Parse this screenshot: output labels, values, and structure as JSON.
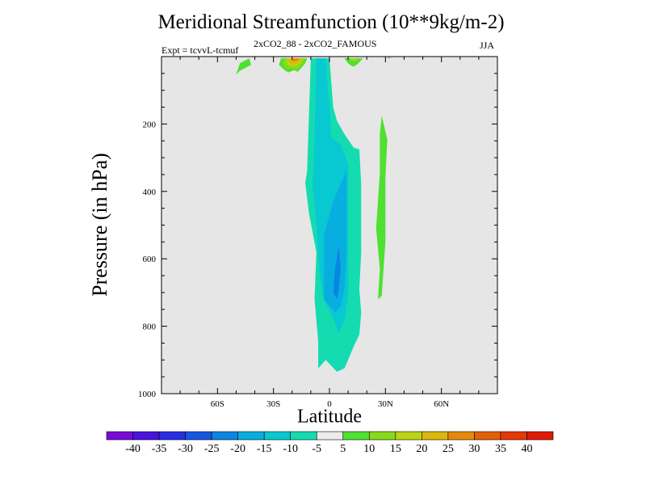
{
  "header": {
    "title": "Meridional Streamfunction (10**9kg/m-2)",
    "subtitle": "2xCO2_88 - 2xCO2_FAMOUS",
    "expt_label": "Expt = tcvvL-tcmuf",
    "season": "JJA"
  },
  "chart_data": {
    "type": "heatmap",
    "title": "Meridional Streamfunction (10**9kg/m-2)",
    "xlabel": "Latitude",
    "ylabel": "Pressure (in hPa)",
    "xlim": [
      -90,
      90
    ],
    "ylim": [
      1000,
      0
    ],
    "x_tick_labels": [
      {
        "value": -60,
        "label": "60S"
      },
      {
        "value": -30,
        "label": "30S"
      },
      {
        "value": 0,
        "label": "0"
      },
      {
        "value": 30,
        "label": "30N"
      },
      {
        "value": 60,
        "label": "60N"
      }
    ],
    "y_tick_labels": [
      {
        "value": 200,
        "label": "200"
      },
      {
        "value": 400,
        "label": "400"
      },
      {
        "value": 600,
        "label": "600"
      },
      {
        "value": 800,
        "label": "800"
      },
      {
        "value": 1000,
        "label": "1000"
      }
    ],
    "background_color": "#e6e6e6",
    "colorbar": {
      "levels": [
        "-40",
        "-35",
        "-30",
        "-25",
        "-20",
        "-15",
        "-10",
        "-5",
        "5",
        "10",
        "15",
        "20",
        "25",
        "30",
        "35",
        "40"
      ],
      "colors": [
        "#7a0ad8",
        "#4a12de",
        "#2a2ee0",
        "#1656e0",
        "#0a86e0",
        "#08aee0",
        "#08c8d2",
        "#14dcb0",
        "#ececec",
        "#50e030",
        "#8ada1c",
        "#bcd414",
        "#ddb80c",
        "#e48a08",
        "#e46006",
        "#e43806",
        "#e01a06"
      ]
    },
    "regions": [
      {
        "level": "5",
        "points": [
          [
            -50,
            53
          ],
          [
            -48,
            20
          ],
          [
            -43,
            5
          ],
          [
            -42,
            25
          ],
          [
            -48,
            42
          ]
        ]
      },
      {
        "level": "5",
        "points": [
          [
            -24,
            40
          ],
          [
            -27,
            25
          ],
          [
            -26,
            5
          ],
          [
            -12,
            5
          ],
          [
            -13,
            20
          ],
          [
            -15,
            33
          ],
          [
            -17,
            45
          ],
          [
            -19,
            40
          ],
          [
            -22,
            47
          ]
        ]
      },
      {
        "level": "10",
        "points": [
          [
            -23,
            36
          ],
          [
            -25,
            20
          ],
          [
            -24,
            5
          ],
          [
            -13,
            5
          ],
          [
            -14,
            20
          ],
          [
            -17,
            38
          ],
          [
            -20,
            35
          ]
        ]
      },
      {
        "level": "15",
        "points": [
          [
            -22,
            27
          ],
          [
            -23,
            15
          ],
          [
            -22,
            5
          ],
          [
            -14,
            5
          ],
          [
            -15,
            15
          ],
          [
            -18,
            30
          ]
        ]
      },
      {
        "level": "20",
        "points": [
          [
            -21,
            20
          ],
          [
            -22,
            10
          ],
          [
            -20,
            5
          ],
          [
            -15,
            5
          ],
          [
            -16,
            12
          ],
          [
            -18,
            22
          ]
        ]
      },
      {
        "level": "25",
        "points": [
          [
            -20,
            14
          ],
          [
            -20,
            6
          ],
          [
            -16,
            6
          ],
          [
            -17,
            12
          ]
        ]
      },
      {
        "level": "5",
        "points": [
          [
            10,
            20
          ],
          [
            8,
            5
          ],
          [
            18,
            5
          ],
          [
            15,
            22
          ],
          [
            13,
            30
          ],
          [
            11,
            25
          ]
        ]
      },
      {
        "level": "10",
        "points": [
          [
            11,
            12
          ],
          [
            10,
            5
          ],
          [
            16,
            5
          ],
          [
            14,
            15
          ]
        ]
      },
      {
        "level": "15",
        "points": [
          [
            12,
            8
          ],
          [
            12,
            5
          ],
          [
            15,
            5
          ],
          [
            14,
            8
          ]
        ]
      },
      {
        "level": "5",
        "points": [
          [
            32,
            1
          ],
          [
            33,
            5
          ],
          [
            31,
            5
          ]
        ]
      },
      {
        "level": "5",
        "points": [
          [
            27,
            345
          ],
          [
            27,
            230
          ],
          [
            28,
            175
          ],
          [
            31,
            245
          ],
          [
            30,
            360
          ],
          [
            30,
            550
          ],
          [
            28,
            710
          ],
          [
            26,
            720
          ],
          [
            27,
            630
          ],
          [
            25,
            510
          ]
        ]
      },
      {
        "level": "-5",
        "points": [
          [
            -6,
            925
          ],
          [
            -6,
            845
          ],
          [
            -8,
            720
          ],
          [
            -7,
            580
          ],
          [
            -11,
            465
          ],
          [
            -13,
            375
          ],
          [
            -12,
            340
          ],
          [
            -10,
            5
          ],
          [
            0,
            5
          ],
          [
            2,
            150
          ],
          [
            4,
            190
          ],
          [
            8,
            230
          ],
          [
            13,
            270
          ],
          [
            16,
            275
          ],
          [
            17,
            380
          ],
          [
            17,
            480
          ],
          [
            17,
            580
          ],
          [
            16,
            690
          ],
          [
            17,
            760
          ],
          [
            16,
            825
          ],
          [
            13,
            860
          ],
          [
            10,
            900
          ],
          [
            8,
            925
          ],
          [
            4,
            935
          ],
          [
            -2,
            900
          ]
        ]
      },
      {
        "level": "-10",
        "points": [
          [
            -5,
            650
          ],
          [
            -7,
            500
          ],
          [
            -9,
            385
          ],
          [
            -8,
            250
          ],
          [
            -7,
            5
          ],
          [
            -2,
            5
          ],
          [
            0,
            150
          ],
          [
            1,
            240
          ],
          [
            6,
            260
          ],
          [
            10,
            320
          ],
          [
            10,
            450
          ],
          [
            10,
            600
          ],
          [
            10,
            710
          ],
          [
            8,
            780
          ],
          [
            5,
            820
          ],
          [
            2,
            775
          ],
          [
            -3,
            720
          ]
        ]
      },
      {
        "level": "-15",
        "points": [
          [
            -3,
            720
          ],
          [
            -3,
            650
          ],
          [
            -3,
            530
          ],
          [
            2,
            430
          ],
          [
            5,
            390
          ],
          [
            9,
            340
          ],
          [
            9,
            450
          ],
          [
            9,
            600
          ],
          [
            8,
            690
          ],
          [
            6,
            740
          ],
          [
            3,
            760
          ]
        ]
      },
      {
        "level": "-20",
        "points": [
          [
            2,
            700
          ],
          [
            3,
            630
          ],
          [
            5,
            560
          ],
          [
            6,
            630
          ],
          [
            5,
            690
          ],
          [
            4,
            720
          ]
        ]
      }
    ]
  }
}
